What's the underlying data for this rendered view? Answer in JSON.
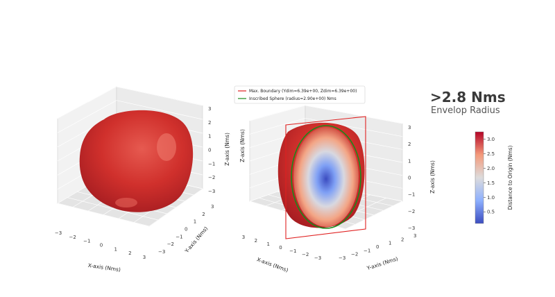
{
  "headline": ">2.8 Nms",
  "subhead": "Envelop Radius",
  "chart_data": [
    {
      "type": "surface3d",
      "xlabel": "X-axis (Nms)",
      "ylabel": "Y-axis (Nms)",
      "zlabel": "Z-axis (Nms)",
      "xlim": [
        -3,
        3
      ],
      "ylim": [
        -3,
        3
      ],
      "zlim": [
        -3,
        3
      ],
      "x_ticks": [
        -3,
        -2,
        -1,
        0,
        1,
        2,
        3
      ],
      "y_ticks": [
        -3,
        -2,
        -1,
        0,
        1,
        2,
        3
      ],
      "z_ticks": [
        -3,
        -2,
        -1,
        0,
        1,
        2,
        3
      ],
      "surface_color": "#cc2a2a",
      "grid": true
    },
    {
      "type": "surface3d",
      "xlabel": "X-axis (Nms)",
      "ylabel": "Y-axis (Nms)",
      "zlabel": "Z-axis (Nms)",
      "xlim": [
        -3,
        3
      ],
      "ylim": [
        -3,
        3
      ],
      "zlim": [
        -3,
        3
      ],
      "x_ticks": [
        3,
        2,
        1,
        0,
        -1,
        -2,
        -3
      ],
      "y_ticks": [
        -3,
        -2,
        -1,
        0,
        1,
        2,
        3
      ],
      "z_ticks": [
        -3,
        -2,
        -1,
        0,
        1,
        2,
        3
      ],
      "legend": [
        {
          "label": "Max. Boundary (Ydim=6.39e+00, Zdim=6.39e+00)",
          "color": "#e02020"
        },
        {
          "label": "Inscribed Sphere (radius=2.90e+00) Nms",
          "color": "#1a8a1a"
        }
      ],
      "legend_position": "top",
      "boundary": {
        "ydim": 6.39,
        "zdim": 6.39
      },
      "inscribed_radius": 2.9,
      "grid": true
    }
  ],
  "colorbar": {
    "label": "Distance to Origin (Nms)",
    "ticks": [
      0.5,
      1.0,
      1.5,
      2.0,
      2.5,
      3.0
    ],
    "tick_labels": [
      "0.5",
      "1.0",
      "1.5",
      "2.0",
      "2.5",
      "3.0"
    ],
    "range": [
      0.1,
      3.25
    ],
    "colormap": "coolwarm",
    "stops": [
      "#3b4cc0",
      "#8db0fe",
      "#dddcdc",
      "#f49a7b",
      "#b40426"
    ]
  }
}
